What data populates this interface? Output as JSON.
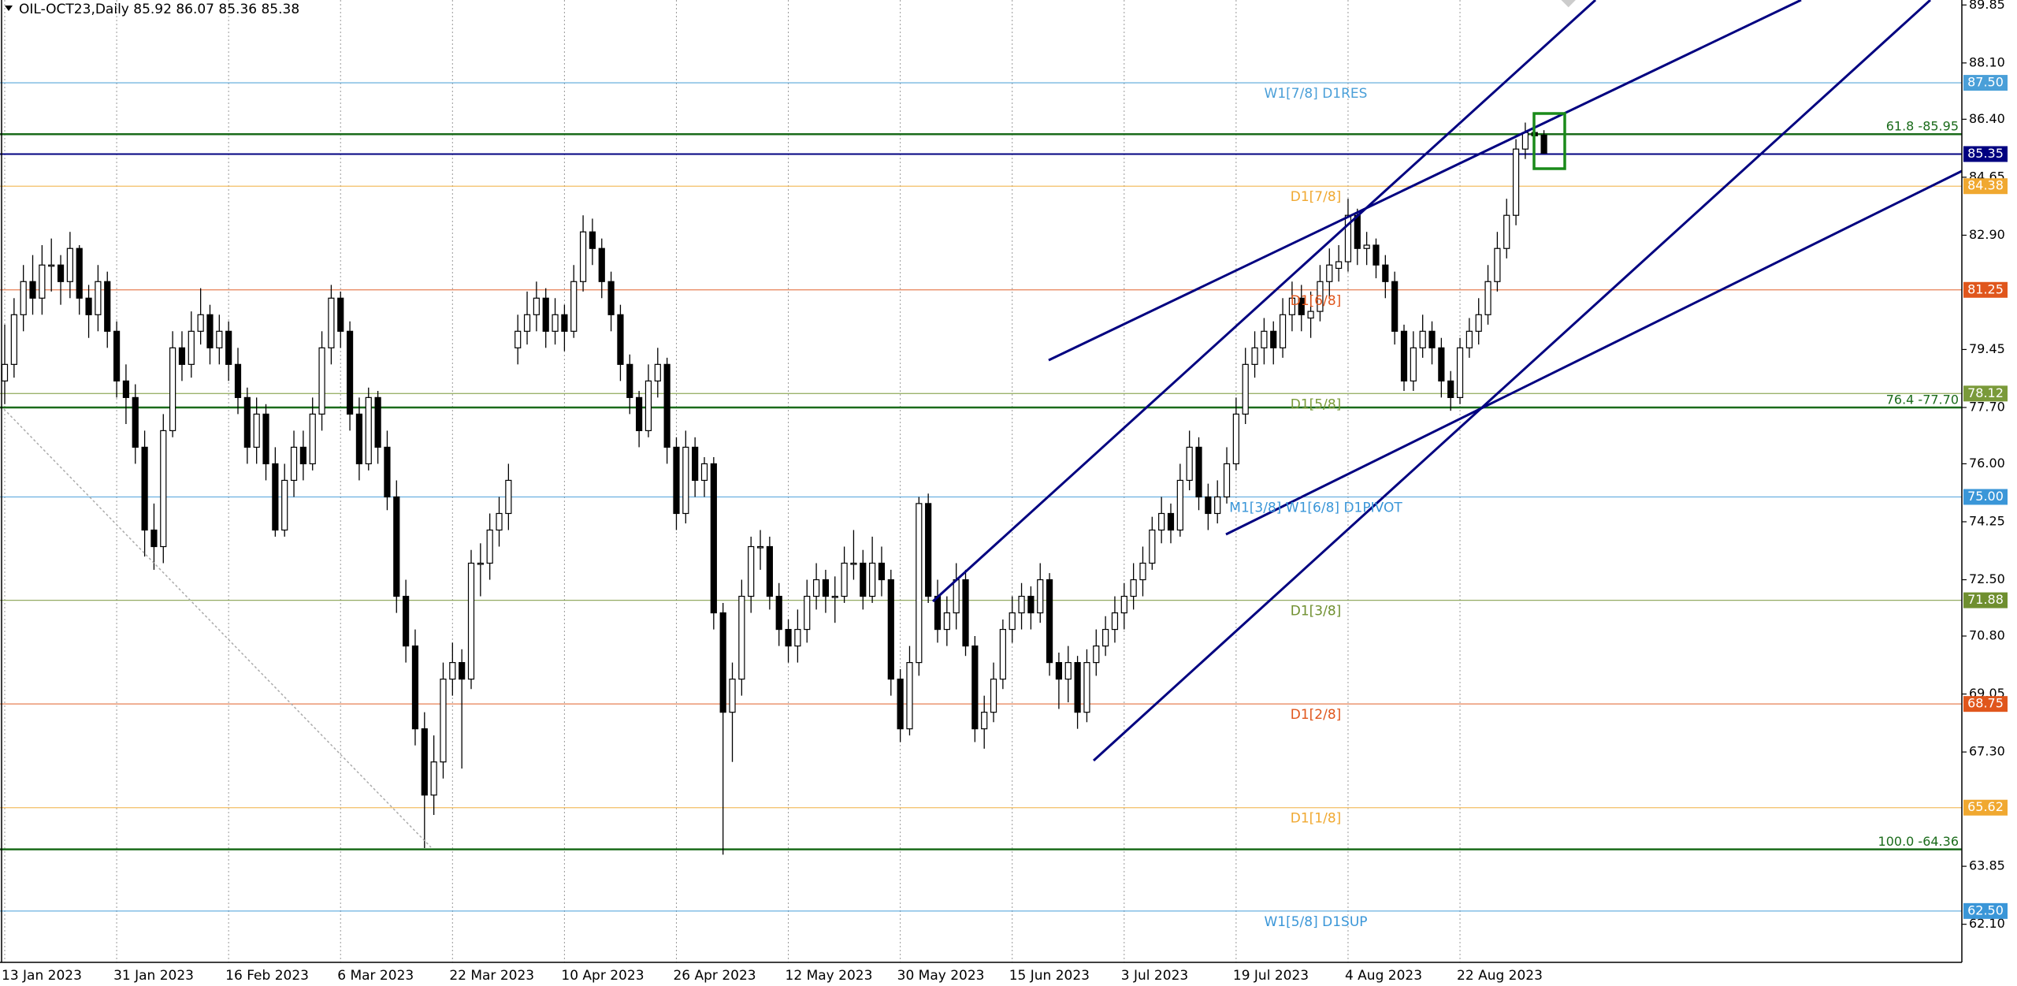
{
  "chart_data": {
    "type": "candlestick",
    "title": "OIL-OCT23,Daily  85.92 86.07 85.36 85.38",
    "categories": [
      "13 Jan 2023",
      null,
      null,
      null,
      null,
      null,
      null,
      null,
      null,
      null,
      null,
      null,
      "31 Jan 2023",
      null,
      null,
      null,
      null,
      null,
      null,
      null,
      null,
      null,
      null,
      null,
      "16 Feb 2023",
      null,
      null,
      null,
      null,
      null,
      null,
      null,
      null,
      null,
      null,
      null,
      "6 Mar 2023",
      null,
      null,
      null,
      null,
      null,
      null,
      null,
      null,
      null,
      null,
      null,
      "22 Mar 2023",
      null,
      null,
      null,
      null,
      null,
      null,
      null,
      null,
      null,
      null,
      null,
      "10 Apr 2023",
      null,
      null,
      null,
      null,
      null,
      null,
      null,
      null,
      null,
      null,
      null,
      "26 Apr 2023",
      null,
      null,
      null,
      null,
      null,
      null,
      null,
      null,
      null,
      null,
      null,
      "12 May 2023",
      null,
      null,
      null,
      null,
      null,
      null,
      null,
      null,
      null,
      null,
      null,
      "30 May 2023",
      null,
      null,
      null,
      null,
      null,
      null,
      null,
      null,
      null,
      null,
      null,
      "15 Jun 2023",
      null,
      null,
      null,
      null,
      null,
      null,
      null,
      null,
      null,
      null,
      null,
      "3 Jul 2023",
      null,
      null,
      null,
      null,
      null,
      null,
      null,
      null,
      null,
      null,
      null,
      "19 Jul 2023",
      null,
      null,
      null,
      null,
      null,
      null,
      null,
      null,
      null,
      null,
      null,
      "4 Aug 2023",
      null,
      null,
      null,
      null,
      null,
      null,
      null,
      null,
      null,
      null,
      null,
      "22 Aug 2023",
      null,
      null,
      null,
      null,
      null,
      null,
      null,
      null,
      null
    ],
    "ohlc": [
      [
        78.5,
        80.2,
        77.8,
        79
      ],
      [
        79,
        81,
        78.6,
        80.5
      ],
      [
        80.5,
        82,
        80,
        81.5
      ],
      [
        81.5,
        82.3,
        80.5,
        81
      ],
      [
        81,
        82.6,
        80.5,
        82
      ],
      [
        82,
        82.8,
        81.2,
        82
      ],
      [
        82,
        82.3,
        80.8,
        81.5
      ],
      [
        81.5,
        83,
        81,
        82.5
      ],
      [
        82.5,
        82.6,
        80.5,
        81
      ],
      [
        81,
        81.4,
        79.8,
        80.5
      ],
      [
        80.5,
        82,
        80,
        81.5
      ],
      [
        81.5,
        81.8,
        79.5,
        80
      ],
      [
        80,
        80.3,
        78,
        78.5
      ],
      [
        78.5,
        79,
        77.2,
        78
      ],
      [
        78,
        78.4,
        76,
        76.5
      ],
      [
        76.5,
        77,
        73.2,
        74
      ],
      [
        74,
        74.8,
        72.8,
        73.5
      ],
      [
        73.5,
        77.5,
        73,
        77
      ],
      [
        77,
        80,
        76.8,
        79.5
      ],
      [
        79.5,
        80,
        78.5,
        79
      ],
      [
        79,
        80.6,
        78.6,
        80
      ],
      [
        80,
        81.3,
        79.6,
        80.5
      ],
      [
        80.5,
        80.8,
        79,
        79.5
      ],
      [
        79.5,
        80.5,
        79,
        80
      ],
      [
        80,
        80.3,
        78.5,
        79
      ],
      [
        79,
        79.5,
        77.5,
        78
      ],
      [
        78,
        78.3,
        76,
        76.5
      ],
      [
        76.5,
        78,
        76,
        77.5
      ],
      [
        77.5,
        77.8,
        75.5,
        76
      ],
      [
        76,
        76.5,
        73.8,
        74
      ],
      [
        74,
        76,
        73.8,
        75.5
      ],
      [
        75.5,
        77,
        75,
        76.5
      ],
      [
        76.5,
        77,
        75.5,
        76
      ],
      [
        76,
        78,
        75.8,
        77.5
      ],
      [
        77.5,
        80,
        77,
        79.5
      ],
      [
        79.5,
        81.4,
        79,
        81
      ],
      [
        81,
        81.2,
        79.5,
        80
      ],
      [
        80,
        80.3,
        77,
        77.5
      ],
      [
        77.5,
        78,
        75.5,
        76
      ],
      [
        76,
        78.3,
        75.8,
        78
      ],
      [
        78,
        78.2,
        76,
        76.5
      ],
      [
        76.5,
        77,
        74.6,
        75
      ],
      [
        75,
        75.5,
        71.5,
        72
      ],
      [
        72,
        72.5,
        70,
        70.5
      ],
      [
        70.5,
        71,
        67.5,
        68
      ],
      [
        68,
        68.5,
        64.4,
        66
      ],
      [
        66,
        67.8,
        65.4,
        67
      ],
      [
        67,
        70,
        66.5,
        69.5
      ],
      [
        69.5,
        70.6,
        69,
        70
      ],
      [
        70,
        70.4,
        66.8,
        69.5
      ],
      [
        69.5,
        73.4,
        69.2,
        73
      ],
      [
        73,
        73.6,
        72,
        73
      ],
      [
        73,
        74.5,
        72.5,
        74
      ],
      [
        74,
        75,
        73.5,
        74.5
      ],
      [
        74.5,
        76,
        74,
        75.5
      ],
      [
        79.5,
        80.5,
        79,
        80
      ],
      [
        80,
        81.2,
        79.6,
        80.5
      ],
      [
        80.5,
        81.5,
        80,
        81
      ],
      [
        81,
        81.3,
        79.5,
        80
      ],
      [
        80,
        81,
        79.6,
        80.5
      ],
      [
        80.5,
        80.8,
        79.4,
        80
      ],
      [
        80,
        82,
        79.8,
        81.5
      ],
      [
        81.5,
        83.5,
        81.2,
        83
      ],
      [
        83,
        83.4,
        82,
        82.5
      ],
      [
        82.5,
        82.8,
        81,
        81.5
      ],
      [
        81.5,
        81.8,
        80,
        80.5
      ],
      [
        80.5,
        80.8,
        78.5,
        79
      ],
      [
        79,
        79.3,
        77.5,
        78
      ],
      [
        78,
        78.2,
        76.5,
        77
      ],
      [
        77,
        79,
        76.8,
        78.5
      ],
      [
        78.5,
        79.5,
        78,
        79
      ],
      [
        79,
        79.2,
        76,
        76.5
      ],
      [
        76.5,
        76.8,
        74,
        74.5
      ],
      [
        74.5,
        77,
        74.2,
        76.5
      ],
      [
        76.5,
        76.8,
        75,
        75.5
      ],
      [
        75.5,
        76.2,
        75,
        76
      ],
      [
        76,
        76.2,
        71,
        71.5
      ],
      [
        71.5,
        71.8,
        64.2,
        68.5
      ],
      [
        68.5,
        70,
        67,
        69.5
      ],
      [
        69.5,
        72.5,
        69,
        72
      ],
      [
        72,
        73.8,
        71.5,
        73.5
      ],
      [
        73.5,
        74,
        72.8,
        73.5
      ],
      [
        73.5,
        73.8,
        71.6,
        72
      ],
      [
        72,
        72.4,
        70.5,
        71
      ],
      [
        71,
        71.3,
        70,
        70.5
      ],
      [
        70.5,
        71.6,
        70,
        71
      ],
      [
        71,
        72.5,
        70.6,
        72
      ],
      [
        72,
        73,
        71.6,
        72.5
      ],
      [
        72.5,
        72.8,
        71.5,
        72
      ],
      [
        72,
        72.6,
        71.2,
        72
      ],
      [
        72,
        73.5,
        71.8,
        73
      ],
      [
        73,
        74,
        72.5,
        73
      ],
      [
        73,
        73.4,
        71.6,
        72
      ],
      [
        72,
        73.8,
        71.8,
        73
      ],
      [
        73,
        73.5,
        72,
        72.5
      ],
      [
        72.5,
        72.8,
        69,
        69.5
      ],
      [
        69.5,
        69.8,
        67.6,
        68
      ],
      [
        68,
        70.5,
        67.8,
        70
      ],
      [
        70,
        75,
        69.6,
        74.8
      ],
      [
        74.8,
        75.1,
        71.8,
        72
      ],
      [
        72,
        72.5,
        70.6,
        71
      ],
      [
        71,
        72,
        70.5,
        71.5
      ],
      [
        71.5,
        73,
        71,
        72.5
      ],
      [
        72.5,
        72.8,
        70.2,
        70.5
      ],
      [
        70.5,
        70.8,
        67.6,
        68
      ],
      [
        68,
        69,
        67.4,
        68.5
      ],
      [
        68.5,
        70,
        68.2,
        69.5
      ],
      [
        69.5,
        71.3,
        69.2,
        71
      ],
      [
        71,
        72,
        70.6,
        71.5
      ],
      [
        71.5,
        72.4,
        71,
        72
      ],
      [
        72,
        72.3,
        71,
        71.5
      ],
      [
        71.5,
        73,
        71.2,
        72.5
      ],
      [
        72.5,
        72.7,
        69.6,
        70
      ],
      [
        70,
        70.3,
        68.6,
        69.5
      ],
      [
        69.5,
        70.5,
        68.8,
        70
      ],
      [
        70,
        70.2,
        68,
        68.5
      ],
      [
        68.5,
        70.4,
        68.2,
        70
      ],
      [
        70,
        71,
        69.6,
        70.5
      ],
      [
        70.5,
        71.4,
        70.2,
        71
      ],
      [
        71,
        72,
        70.6,
        71.5
      ],
      [
        71.5,
        72.4,
        71,
        72
      ],
      [
        72,
        73,
        71.6,
        72.5
      ],
      [
        72.5,
        73.5,
        72,
        73
      ],
      [
        73,
        74.4,
        72.8,
        74
      ],
      [
        74,
        75,
        73.6,
        74.5
      ],
      [
        74.5,
        74.8,
        73.6,
        74
      ],
      [
        74,
        76,
        73.8,
        75.5
      ],
      [
        75.5,
        77,
        75.2,
        76.5
      ],
      [
        76.5,
        76.8,
        74.6,
        75
      ],
      [
        75,
        75.4,
        74,
        74.5
      ],
      [
        74.5,
        75.5,
        74.2,
        75
      ],
      [
        75,
        76.5,
        74.8,
        76
      ],
      [
        76,
        78,
        75.8,
        77.5
      ],
      [
        77.5,
        79.5,
        77.2,
        79
      ],
      [
        79,
        80,
        78.6,
        79.5
      ],
      [
        79.5,
        80.4,
        79,
        80
      ],
      [
        80,
        80.3,
        79,
        79.5
      ],
      [
        79.5,
        81,
        79.2,
        80.5
      ],
      [
        80.5,
        81.5,
        80,
        81
      ],
      [
        81,
        81.4,
        80,
        80.5
      ],
      [
        80.4,
        81.2,
        79.8,
        80.6
      ],
      [
        80.6,
        82,
        80.3,
        81.5
      ],
      [
        81.5,
        82.5,
        81,
        82
      ],
      [
        81.9,
        82.6,
        81.5,
        82.1
      ],
      [
        82.1,
        84,
        81.8,
        83.5
      ],
      [
        83.5,
        83.7,
        82,
        82.5
      ],
      [
        82.5,
        83,
        82,
        82.6
      ],
      [
        82.6,
        82.8,
        81.6,
        82
      ],
      [
        82,
        82.3,
        81,
        81.5
      ],
      [
        81.5,
        81.8,
        79.6,
        80
      ],
      [
        80,
        80.2,
        78.2,
        78.5
      ],
      [
        78.5,
        80,
        78.2,
        79.5
      ],
      [
        79.5,
        80.5,
        79.2,
        80
      ],
      [
        80,
        80.3,
        79,
        79.5
      ],
      [
        79.5,
        79.8,
        78,
        78.5
      ],
      [
        78.5,
        78.8,
        77.6,
        78
      ],
      [
        78,
        79.8,
        77.8,
        79.5
      ],
      [
        79.5,
        80.4,
        79.2,
        80
      ],
      [
        80,
        81,
        79.6,
        80.5
      ],
      [
        80.5,
        82,
        80.2,
        81.5
      ],
      [
        81.5,
        83,
        81.2,
        82.5
      ],
      [
        82.5,
        84,
        82.2,
        83.5
      ],
      [
        83.5,
        85.8,
        83.2,
        85.5
      ],
      [
        85.5,
        86.3,
        85.2,
        86
      ],
      [
        86,
        86.2,
        85.6,
        85.9
      ],
      [
        85.92,
        86.07,
        85.36,
        85.38
      ]
    ],
    "up_color": "#ffffff",
    "down_color": "#000000",
    "ylim": [
      60.95,
      90.0
    ],
    "yticks": [
      89.85,
      {
        "value": 88.1,
        "label": "88.10"
      },
      {
        "value": 86.4,
        "label": "86.40"
      },
      84.65,
      {
        "value": 82.9,
        "label": "82.90"
      },
      79.45,
      {
        "value": 77.7,
        "label": "77.70"
      },
      {
        "value": 76,
        "label": "76.00"
      },
      74.25,
      {
        "value": 72.5,
        "label": "72.50"
      },
      {
        "value": 70.8,
        "label": "70.80"
      },
      69.05,
      {
        "value": 67.3,
        "label": "67.30"
      },
      63.85,
      {
        "value": 62.1,
        "label": "62.10"
      }
    ],
    "levels": [
      {
        "value": 87.5,
        "value_label": "87.50",
        "label": "W1[7/8] D1RES",
        "color": "#4a9fd8"
      },
      {
        "value": 84.38,
        "value_label": "84.38",
        "label": "D1[7/8]",
        "color": "#f0a830"
      },
      {
        "value": 81.25,
        "value_label": "81.25",
        "label": "D1[6/8]",
        "color": "#e0561c"
      },
      {
        "value": 78.12,
        "value_label": "78.12",
        "label": "D1[5/8]",
        "color": "#7a9a3a"
      },
      {
        "value": 75,
        "value_label": "75.00",
        "label": "M1[3/8] W1[6/8] D1PIVOT",
        "color": "#3a96d8"
      },
      {
        "value": 71.88,
        "value_label": "71.88",
        "label": "D1[3/8]",
        "color": "#6f8f2f"
      },
      {
        "value": 68.75,
        "value_label": "68.75",
        "label": "D1[2/8]",
        "color": "#e0561c"
      },
      {
        "value": 65.62,
        "value_label": "65.62",
        "label": "D1[1/8]",
        "color": "#f0a830"
      },
      {
        "value": 62.5,
        "value_label": "62.50",
        "label": "W1[5/8] D1SUP",
        "color": "#3a96d8"
      }
    ],
    "fib_levels": [
      {
        "value": 85.95,
        "label": "61.8 -85.95",
        "color": "#1a6b1a"
      },
      {
        "value": 77.7,
        "label": "76.4 -77.70",
        "color": "#1a6b1a"
      },
      {
        "value": 64.36,
        "label": "100.0 -64.36",
        "color": "#1a6b1a"
      }
    ],
    "price_line": {
      "value": 85.35,
      "value_label": "85.35",
      "color": "#000080"
    }
  }
}
